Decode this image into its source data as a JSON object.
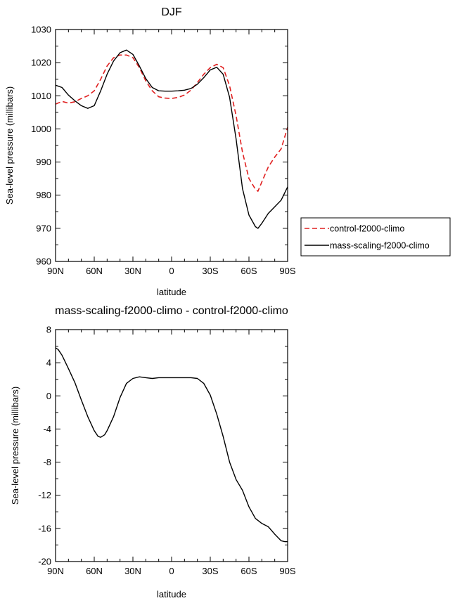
{
  "chart_data": [
    {
      "type": "line",
      "title": "DJF",
      "xlabel": "latitude",
      "ylabel": "Sea-level pressure (millibars)",
      "xlim": [
        90,
        -90
      ],
      "ylim": [
        960,
        1030
      ],
      "xtick_values": [
        90,
        60,
        30,
        0,
        -30,
        -60,
        -90
      ],
      "xtick_labels": [
        "90N",
        "60N",
        "30N",
        "0",
        "30S",
        "60S",
        "90S"
      ],
      "yticks": [
        960,
        970,
        980,
        990,
        1000,
        1010,
        1020,
        1030
      ],
      "legend": {
        "placement": "right-outside"
      },
      "series": [
        {
          "name": "control-f2000-climo",
          "color": "#e02020",
          "style": "dashed",
          "x": [
            90,
            85,
            80,
            75,
            70,
            65,
            60,
            55,
            50,
            45,
            40,
            35,
            30,
            25,
            20,
            15,
            10,
            5,
            0,
            -5,
            -10,
            -15,
            -20,
            -25,
            -30,
            -35,
            -40,
            -45,
            -50,
            -55,
            -60,
            -65,
            -67,
            -70,
            -75,
            -80,
            -85,
            -90
          ],
          "values": [
            1007.5,
            1008.3,
            1007.8,
            1008.2,
            1009.2,
            1010,
            1011.5,
            1015,
            1019,
            1021.5,
            1022.3,
            1022.3,
            1021.5,
            1018.5,
            1014.5,
            1011.5,
            1009.7,
            1009.3,
            1009.2,
            1009.5,
            1010.2,
            1011.7,
            1014,
            1016.5,
            1018.5,
            1019.5,
            1018.5,
            1013,
            1004,
            993,
            985,
            981.8,
            981.2,
            984,
            988.5,
            991.5,
            994,
            1000.5
          ]
        },
        {
          "name": "mass-scaling-f2000-climo",
          "color": "#000000",
          "style": "solid",
          "x": [
            90,
            85,
            80,
            75,
            70,
            65,
            60,
            55,
            50,
            45,
            40,
            35,
            30,
            25,
            20,
            15,
            10,
            5,
            0,
            -5,
            -10,
            -15,
            -20,
            -25,
            -30,
            -35,
            -40,
            -45,
            -50,
            -55,
            -60,
            -65,
            -67,
            -70,
            -75,
            -80,
            -85,
            -90
          ],
          "values": [
            1013.2,
            1012.5,
            1010.2,
            1008.5,
            1007,
            1006.2,
            1007,
            1011.5,
            1016.5,
            1020.5,
            1023,
            1023.8,
            1022.5,
            1019,
            1015.2,
            1012.5,
            1011.5,
            1011.4,
            1011.4,
            1011.5,
            1011.7,
            1012.2,
            1013.5,
            1015.5,
            1017.8,
            1018.6,
            1016.5,
            1009.5,
            997,
            982,
            974,
            970.5,
            970,
            971.5,
            974.5,
            976.5,
            978.5,
            982.5
          ]
        }
      ]
    },
    {
      "type": "line",
      "title": "mass-scaling-f2000-climo - control-f2000-climo",
      "xlabel": "latitude",
      "ylabel": "Sea-level pressure (millibars)",
      "xlim": [
        90,
        -90
      ],
      "ylim": [
        -20,
        8
      ],
      "xtick_values": [
        90,
        60,
        30,
        0,
        -30,
        -60,
        -90
      ],
      "xtick_labels": [
        "90N",
        "60N",
        "30N",
        "0",
        "30S",
        "60S",
        "90S"
      ],
      "yticks": [
        -20,
        -16,
        -12,
        -8,
        -4,
        0,
        4,
        8
      ],
      "series": [
        {
          "color": "#000000",
          "style": "solid",
          "x": [
            90,
            88,
            85,
            80,
            75,
            70,
            65,
            60,
            57,
            55,
            52,
            50,
            45,
            40,
            35,
            30,
            25,
            20,
            15,
            10,
            5,
            0,
            -5,
            -10,
            -15,
            -20,
            -25,
            -30,
            -35,
            -40,
            -45,
            -50,
            -55,
            -60,
            -65,
            -70,
            -75,
            -80,
            -85,
            -88,
            -90
          ],
          "values": [
            5.8,
            5.6,
            4.9,
            3.3,
            1.6,
            -0.5,
            -2.5,
            -4.2,
            -4.9,
            -5.0,
            -4.7,
            -4.2,
            -2.5,
            -0.2,
            1.5,
            2.1,
            2.3,
            2.2,
            2.1,
            2.2,
            2.2,
            2.2,
            2.2,
            2.2,
            2.2,
            2.1,
            1.5,
            0.1,
            -2.2,
            -4.9,
            -8.0,
            -10.1,
            -11.4,
            -13.4,
            -14.8,
            -15.4,
            -15.8,
            -16.7,
            -17.5,
            -17.6,
            -17.6
          ]
        }
      ]
    }
  ]
}
